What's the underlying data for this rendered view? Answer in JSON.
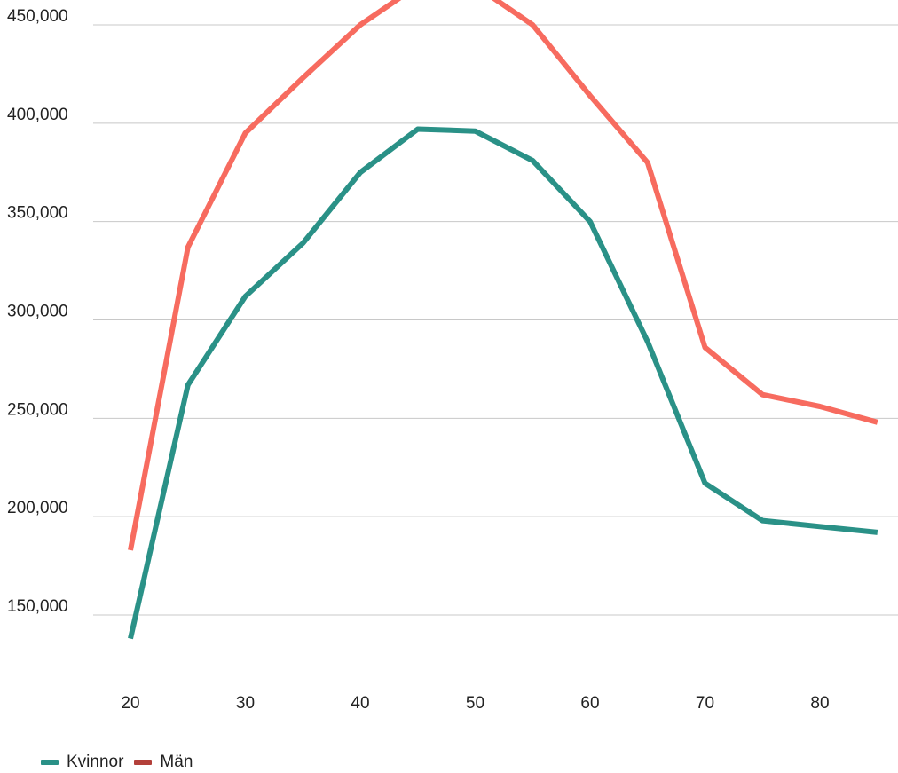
{
  "chart_data": {
    "type": "line",
    "title": "",
    "xlabel": "",
    "ylabel": "",
    "x": [
      20,
      25,
      30,
      35,
      40,
      45,
      50,
      55,
      60,
      65,
      70,
      75,
      80,
      85
    ],
    "xticks": [
      "20",
      "30",
      "40",
      "50",
      "60",
      "70",
      "80"
    ],
    "xtick_values": [
      20,
      30,
      40,
      50,
      60,
      70,
      80
    ],
    "yticks": [
      "150,000",
      "200,000",
      "250,000",
      "300,000",
      "350,000",
      "400,000",
      "450,000"
    ],
    "ytick_values": [
      150000,
      200000,
      250000,
      300000,
      350000,
      400000,
      450000
    ],
    "xlim": [
      17.5,
      88
    ],
    "ylim": [
      137000,
      462000
    ],
    "grid": true,
    "legend_position": "bottom-left",
    "series": [
      {
        "name": "Kvinnor",
        "color": "#2a9187",
        "values": [
          138000,
          267000,
          312000,
          339000,
          375000,
          397000,
          396000,
          381000,
          350000,
          289000,
          217000,
          198000,
          195000,
          192000
        ]
      },
      {
        "name": "Män",
        "color": "#f76b5f",
        "legend_color": "#b3403a",
        "values": [
          183000,
          337000,
          395000,
          423000,
          450000,
          470000,
          470000,
          450000,
          414000,
          380000,
          286000,
          262000,
          256000,
          248000
        ]
      }
    ]
  },
  "legend": {
    "items": [
      {
        "label": "Kvinnor",
        "color": "#2a9187"
      },
      {
        "label": "Män",
        "color": "#b3403a"
      }
    ]
  }
}
